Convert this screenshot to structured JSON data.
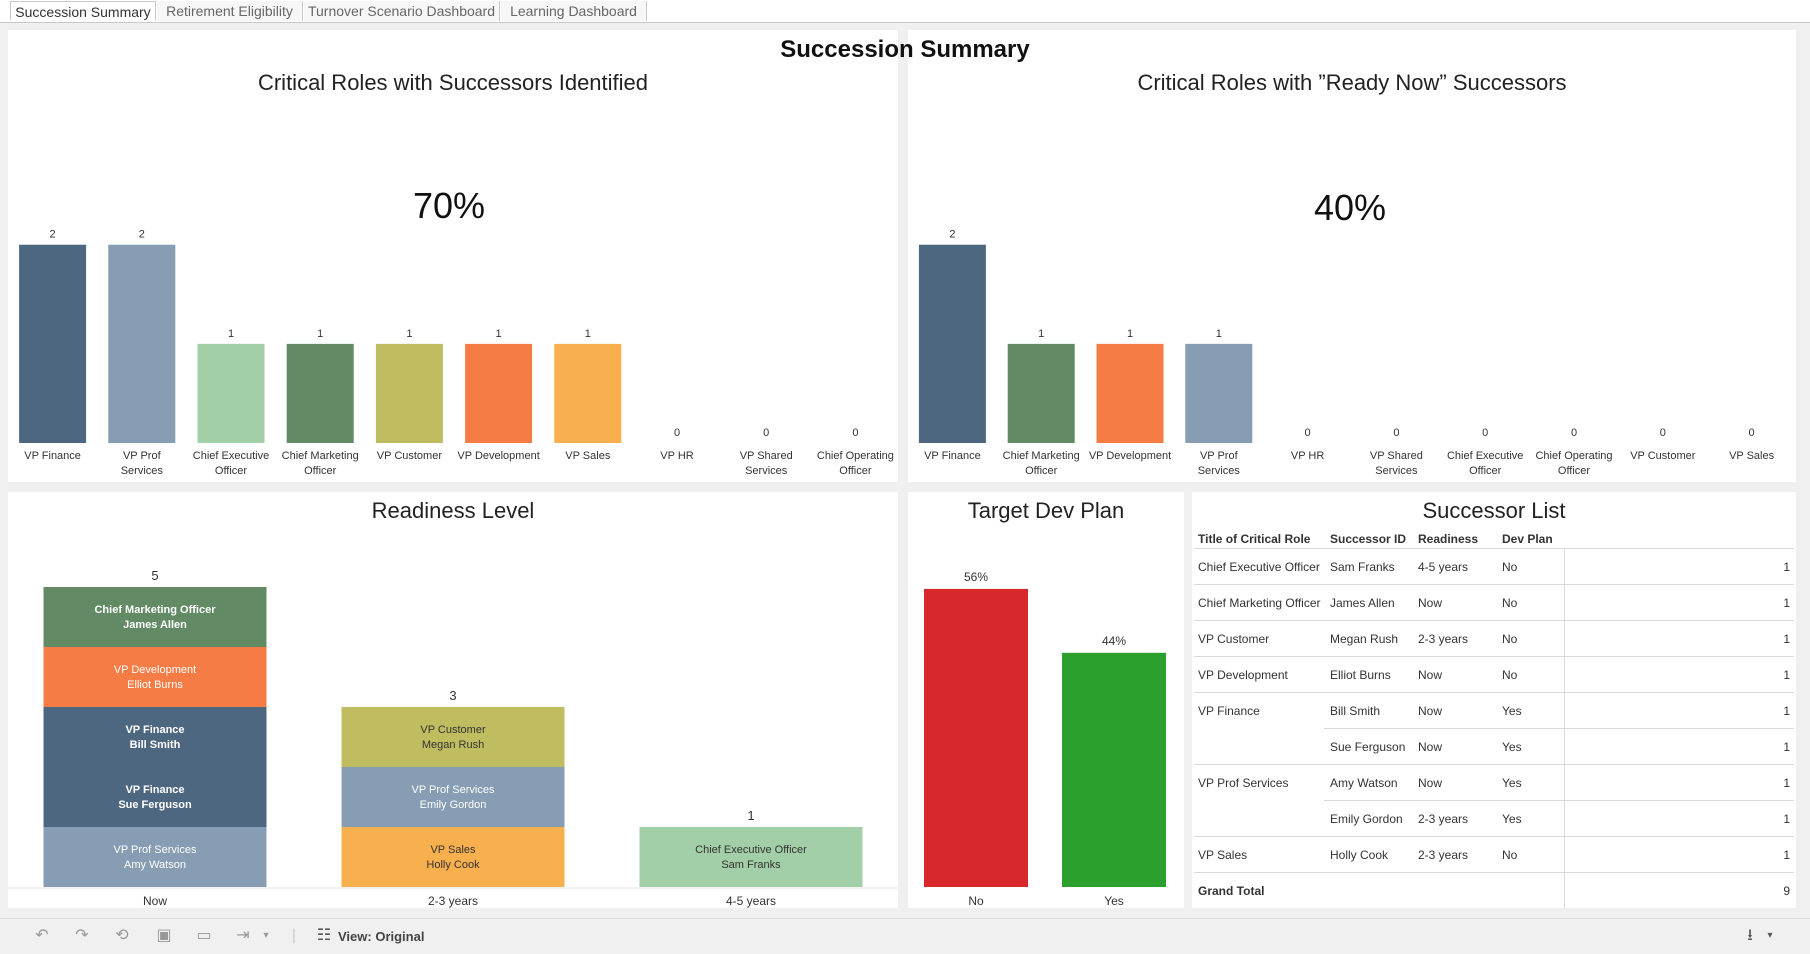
{
  "tabs": [
    {
      "label": "Succession Summary",
      "active": true
    },
    {
      "label": "Retirement Eligibility",
      "active": false
    },
    {
      "label": "Turnover Scenario Dashboard",
      "active": false
    },
    {
      "label": "Learning Dashboard",
      "active": false
    }
  ],
  "dashboard": {
    "title": "Succession Summary"
  },
  "panels": {
    "successors": {
      "title": "Critical Roles with Successors Identified",
      "kpi": "70%"
    },
    "ready_now": {
      "title": "Critical Roles with ”Ready Now” Successors",
      "kpi": "40%"
    },
    "readiness": {
      "title": "Readiness Level"
    },
    "dev_plan": {
      "title": "Target Dev Plan"
    },
    "successor_list": {
      "title": "Successor List"
    }
  },
  "chart_data": [
    {
      "type": "bar",
      "title": "Critical Roles with Successors Identified",
      "categories": [
        "VP Finance",
        "VP Prof Services",
        "Chief Executive Officer",
        "Chief Marketing Officer",
        "VP Customer",
        "VP Development",
        "VP Sales",
        "VP HR",
        "VP Shared Services",
        "Chief Operating Officer"
      ],
      "values": [
        2,
        2,
        1,
        1,
        1,
        1,
        1,
        0,
        0,
        0
      ],
      "colors": [
        "#4e6781",
        "#879db3",
        "#a3cfa8",
        "#628b65",
        "#c0bd61",
        "#f57c44",
        "#f8b04e",
        "#bbbbbb",
        "#bbbbbb",
        "#bbbbbb"
      ],
      "ylim": [
        0,
        2.3
      ]
    },
    {
      "type": "bar",
      "title": "Critical Roles with ”Ready Now” Successors",
      "categories": [
        "VP Finance",
        "Chief Marketing Officer",
        "VP Development",
        "VP Prof Services",
        "VP HR",
        "VP Shared Services",
        "Chief Executive Officer",
        "Chief Operating Officer",
        "VP Customer",
        "VP Sales"
      ],
      "values": [
        2,
        1,
        1,
        1,
        0,
        0,
        0,
        0,
        0,
        0
      ],
      "colors": [
        "#4e6781",
        "#628b65",
        "#f57c44",
        "#879db3",
        "#bbbbbb",
        "#bbbbbb",
        "#bbbbbb",
        "#bbbbbb",
        "#bbbbbb",
        "#bbbbbb"
      ],
      "ylim": [
        0,
        2.3
      ]
    },
    {
      "type": "bar",
      "title": "Readiness Level",
      "stacked": true,
      "categories": [
        "Now",
        "2-3 years",
        "4-5 years"
      ],
      "totals": [
        5,
        3,
        1
      ],
      "stacks": [
        [
          {
            "role": "Chief Marketing Officer",
            "name": "James Allen",
            "color": "#628b65",
            "bold": true
          },
          {
            "role": "VP Development",
            "name": "Elliot Burns",
            "color": "#f57c44",
            "bold": false
          },
          {
            "role": "VP Finance",
            "name": "Bill Smith",
            "color": "#4e6781",
            "bold": true
          },
          {
            "role": "VP Finance",
            "name": "Sue Ferguson",
            "color": "#4e6781",
            "bold": true
          },
          {
            "role": "VP Prof Services",
            "name": "Amy Watson",
            "color": "#879db3",
            "bold": false
          }
        ],
        [
          {
            "role": "VP Customer",
            "name": "Megan Rush",
            "color": "#c0bd61",
            "bold": false
          },
          {
            "role": "VP Prof Services",
            "name": "Emily Gordon",
            "color": "#879db3",
            "bold": false
          },
          {
            "role": "VP Sales",
            "name": "Holly Cook",
            "color": "#f8b04e",
            "bold": false
          }
        ],
        [
          {
            "role": "Chief Executive Officer",
            "name": "Sam Franks",
            "color": "#a3cfa8",
            "bold": false
          }
        ]
      ]
    },
    {
      "type": "bar",
      "title": "Target Dev Plan",
      "categories": [
        "No",
        "Yes"
      ],
      "values": [
        56,
        44
      ],
      "labels": [
        "56%",
        "44%"
      ],
      "colors": [
        "#d7282b",
        "#2ca02c"
      ],
      "ylim": [
        0,
        62
      ]
    }
  ],
  "table": {
    "headers": [
      "Title of Critical Role",
      "Successor ID",
      "Readiness",
      "Dev Plan"
    ],
    "rows": [
      {
        "role": "Chief Executive Officer",
        "id": "Sam Franks",
        "readiness": "4-5 years",
        "dev": "No",
        "count": "1"
      },
      {
        "role": "Chief Marketing Officer",
        "id": "James Allen",
        "readiness": "Now",
        "dev": "No",
        "count": "1"
      },
      {
        "role": "VP Customer",
        "id": "Megan Rush",
        "readiness": "2-3 years",
        "dev": "No",
        "count": "1"
      },
      {
        "role": "VP Development",
        "id": "Elliot Burns",
        "readiness": "Now",
        "dev": "No",
        "count": "1"
      },
      {
        "role": "VP Finance",
        "id": "Bill Smith",
        "readiness": "Now",
        "dev": "Yes",
        "count": "1"
      },
      {
        "role": "",
        "id": "Sue Ferguson",
        "readiness": "Now",
        "dev": "Yes",
        "count": "1"
      },
      {
        "role": "VP Prof Services",
        "id": "Amy Watson",
        "readiness": "Now",
        "dev": "Yes",
        "count": "1"
      },
      {
        "role": "",
        "id": "Emily Gordon",
        "readiness": "2-3 years",
        "dev": "Yes",
        "count": "1"
      },
      {
        "role": "VP Sales",
        "id": "Holly Cook",
        "readiness": "2-3 years",
        "dev": "No",
        "count": "1"
      }
    ],
    "grand_total_label": "Grand Total",
    "grand_total_value": "9"
  },
  "toolbar": {
    "view_label": "View: Original"
  }
}
